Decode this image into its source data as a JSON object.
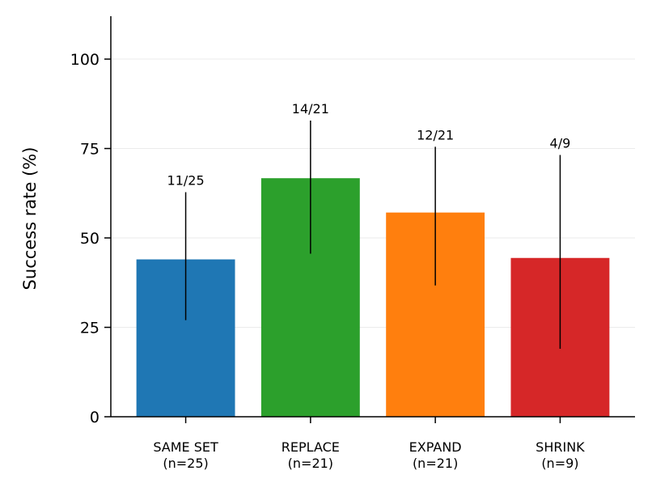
{
  "chart_data": {
    "type": "bar",
    "ylabel": "Success rate (%)",
    "categories": [
      "SAME SET\n(n=25)",
      "REPLACE\n(n=21)",
      "EXPAND\n(n=21)",
      "SHRINK\n(n=9)"
    ],
    "values": [
      44,
      66.7,
      57.1,
      44.4
    ],
    "value_labels": [
      "11/25",
      "14/21",
      "12/21",
      "4/9"
    ],
    "error_low": [
      27,
      45.6,
      36.7,
      19
    ],
    "error_high": [
      62.8,
      82.8,
      75.5,
      73.2
    ],
    "colors": [
      "#1f77b4",
      "#2ca02c",
      "#ff7f0e",
      "#d62728"
    ],
    "ylim": [
      0,
      112
    ],
    "yticks": [
      0,
      25,
      50,
      75,
      100
    ],
    "grid": true
  }
}
